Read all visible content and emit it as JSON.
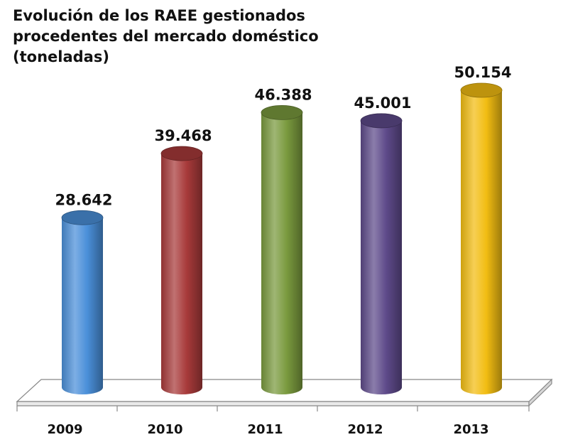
{
  "chart_data": {
    "type": "bar",
    "title_lines": [
      "Evolución de los RAEE gestionados",
      "procedentes del mercado doméstico",
      "(toneladas)"
    ],
    "categories": [
      "2009",
      "2010",
      "2011",
      "2012",
      "2013"
    ],
    "values": [
      28642,
      39468,
      46388,
      45001,
      50154
    ],
    "value_labels": [
      "28.642",
      "39.468",
      "46.388",
      "45.001",
      "50.154"
    ],
    "colors": [
      "#4a8fd9",
      "#a83a3a",
      "#7a9a3e",
      "#5e4a8a",
      "#f2bd12"
    ],
    "xlabel": "",
    "ylabel": "",
    "ylim": [
      0,
      50154
    ],
    "grid": false,
    "legend": "none"
  }
}
